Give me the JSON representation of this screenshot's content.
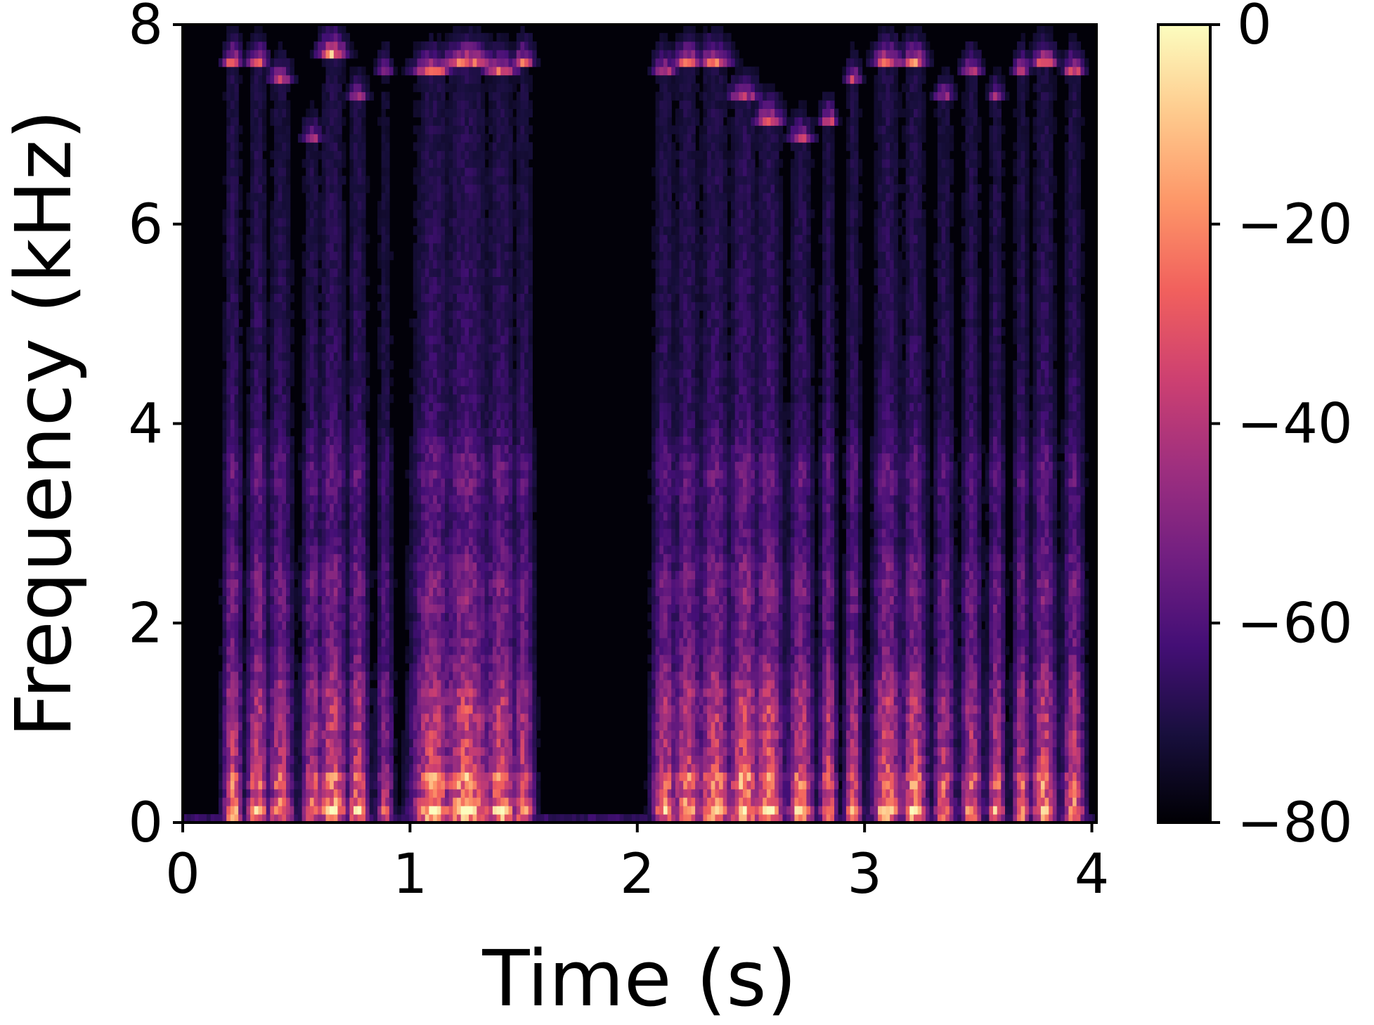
{
  "chart_data": {
    "type": "heatmap",
    "subtype": "spectrogram",
    "title": "",
    "xlabel": "Time (s)",
    "ylabel": "Frequency (kHz)",
    "xlim": [
      0,
      4.02
    ],
    "ylim": [
      0,
      8
    ],
    "x_ticks": [
      0,
      1,
      2,
      3,
      4
    ],
    "y_ticks": [
      0,
      2,
      4,
      6,
      8
    ],
    "x_tick_labels": [
      "0",
      "1",
      "2",
      "3",
      "4"
    ],
    "y_tick_labels": [
      "0",
      "2",
      "4",
      "6",
      "8"
    ],
    "colorbar": {
      "colormap": "magma",
      "range": [
        -80,
        0
      ],
      "ticks": [
        0,
        -20,
        -40,
        -60,
        -80
      ],
      "tick_labels": [
        "0",
        "−20",
        "−40",
        "−60",
        "−80"
      ]
    },
    "colormap_stops": [
      "#000004",
      "#180f3d",
      "#440f76",
      "#721f81",
      "#9e2f7f",
      "#cd4071",
      "#f1605d",
      "#fd9668",
      "#feca8d",
      "#fcfdbf"
    ],
    "grid": false,
    "speech_segments": [
      {
        "t": 0.22,
        "w": 0.045,
        "top": 7.6,
        "level": 0.78
      },
      {
        "t": 0.33,
        "w": 0.05,
        "top": 7.6,
        "level": 0.78
      },
      {
        "t": 0.43,
        "w": 0.06,
        "top": 7.4,
        "level": 0.72
      },
      {
        "t": 0.57,
        "w": 0.05,
        "top": 6.8,
        "level": 0.7
      },
      {
        "t": 0.66,
        "w": 0.07,
        "top": 7.7,
        "level": 0.8
      },
      {
        "t": 0.77,
        "w": 0.05,
        "top": 7.2,
        "level": 0.76
      },
      {
        "t": 0.89,
        "w": 0.04,
        "top": 7.5,
        "level": 0.55
      },
      {
        "t": 1.1,
        "w": 0.1,
        "top": 7.5,
        "level": 0.82
      },
      {
        "t": 1.25,
        "w": 0.12,
        "top": 7.6,
        "level": 0.85
      },
      {
        "t": 1.4,
        "w": 0.08,
        "top": 7.5,
        "level": 0.78
      },
      {
        "t": 1.5,
        "w": 0.05,
        "top": 7.6,
        "level": 0.72
      },
      {
        "t": 2.12,
        "w": 0.06,
        "top": 7.5,
        "level": 0.72
      },
      {
        "t": 2.22,
        "w": 0.07,
        "top": 7.6,
        "level": 0.76
      },
      {
        "t": 2.34,
        "w": 0.08,
        "top": 7.6,
        "level": 0.8
      },
      {
        "t": 2.47,
        "w": 0.08,
        "top": 7.2,
        "level": 0.85
      },
      {
        "t": 2.58,
        "w": 0.07,
        "top": 7.0,
        "level": 0.85
      },
      {
        "t": 2.72,
        "w": 0.06,
        "top": 6.8,
        "level": 0.78
      },
      {
        "t": 2.84,
        "w": 0.04,
        "top": 7.0,
        "level": 0.75
      },
      {
        "t": 2.95,
        "w": 0.04,
        "top": 7.4,
        "level": 0.72
      },
      {
        "t": 3.1,
        "w": 0.07,
        "top": 7.6,
        "level": 0.8
      },
      {
        "t": 3.22,
        "w": 0.06,
        "top": 7.6,
        "level": 0.8
      },
      {
        "t": 3.35,
        "w": 0.05,
        "top": 7.2,
        "level": 0.7
      },
      {
        "t": 3.47,
        "w": 0.05,
        "top": 7.5,
        "level": 0.72
      },
      {
        "t": 3.58,
        "w": 0.04,
        "top": 7.2,
        "level": 0.72
      },
      {
        "t": 3.69,
        "w": 0.04,
        "top": 7.5,
        "level": 0.7
      },
      {
        "t": 3.79,
        "w": 0.06,
        "top": 7.6,
        "level": 0.78
      },
      {
        "t": 3.92,
        "w": 0.05,
        "top": 7.5,
        "level": 0.75
      }
    ]
  }
}
